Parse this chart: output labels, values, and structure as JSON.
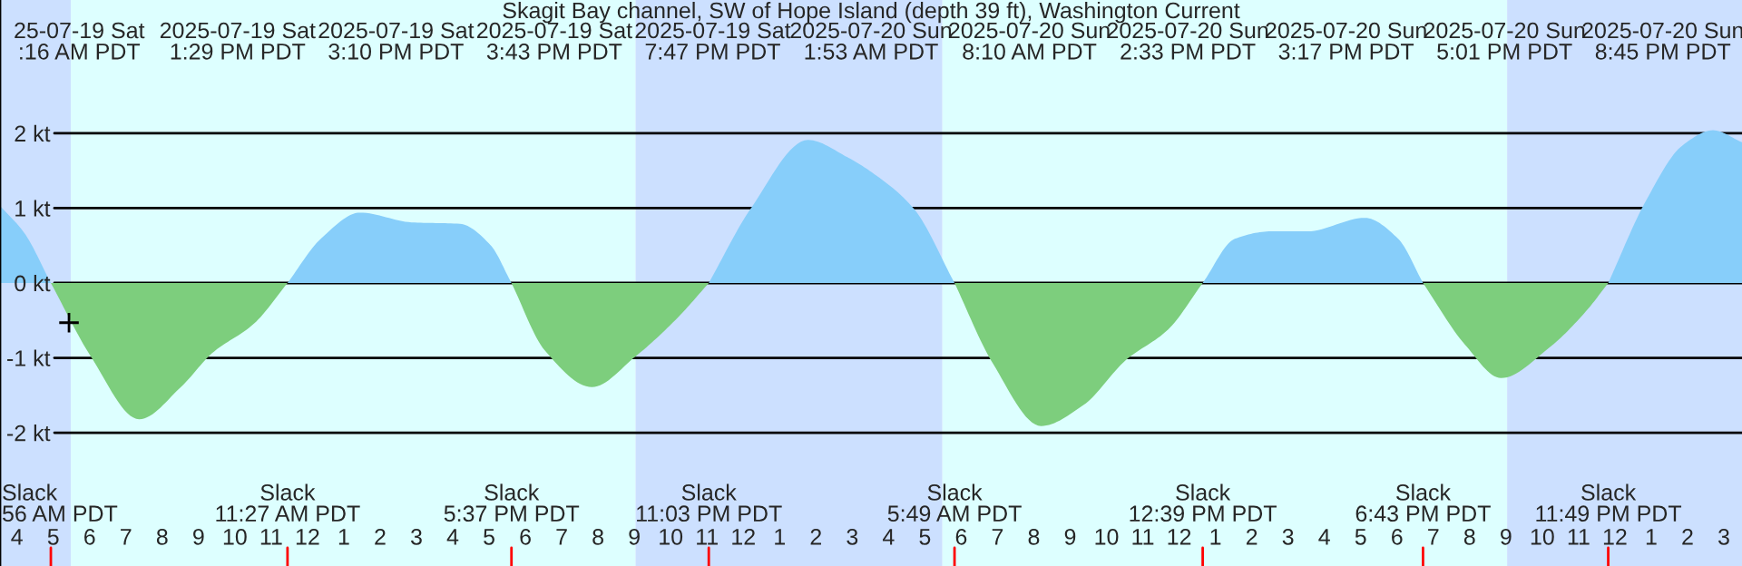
{
  "chart_data": {
    "type": "area",
    "title": "Skagit Bay channel, SW of Hope Island (depth 39 ft), Washington Current",
    "x": [
      "2025-07-19T03:32",
      "2025-07-19T04:12",
      "2025-07-19T04:56",
      "2025-07-19T06:02",
      "2025-07-19T07:22",
      "2025-07-19T08:32",
      "2025-07-19T09:22",
      "2025-07-19T10:32",
      "2025-07-19T11:27",
      "2025-07-19T12:22",
      "2025-07-19T13:27",
      "2025-07-19T14:52",
      "2025-07-19T16:12",
      "2025-07-19T17:02",
      "2025-07-19T17:37",
      "2025-07-19T18:32",
      "2025-07-19T19:50",
      "2025-07-19T21:02",
      "2025-07-19T22:12",
      "2025-07-19T23:03",
      "2025-07-20T00:12",
      "2025-07-20T01:47",
      "2025-07-20T02:52",
      "2025-07-20T03:32",
      "2025-07-20T04:42",
      "2025-07-20T05:49",
      "2025-07-20T06:52",
      "2025-07-20T08:12",
      "2025-07-20T09:22",
      "2025-07-20T10:32",
      "2025-07-20T11:42",
      "2025-07-20T12:39",
      "2025-07-20T13:32",
      "2025-07-20T14:32",
      "2025-07-20T15:32",
      "2025-07-20T17:07",
      "2025-07-20T18:02",
      "2025-07-20T18:43",
      "2025-07-20T19:52",
      "2025-07-20T20:52",
      "2025-07-20T22:12",
      "2025-07-20T23:12",
      "2025-07-20T23:49",
      "2025-07-21T00:52",
      "2025-07-21T01:52",
      "2025-07-21T02:42",
      "2025-07-21T03:30"
    ],
    "series": [
      {
        "color": "#87cefa",
        "values": [
          1.03,
          0.67,
          0,
          null,
          null,
          null,
          null,
          null,
          0,
          0.59,
          0.94,
          0.81,
          0.79,
          0.51,
          0,
          null,
          null,
          null,
          null,
          0,
          0.99,
          1.91,
          1.68,
          1.48,
          0.99,
          0,
          null,
          null,
          null,
          null,
          null,
          0,
          0.59,
          0.69,
          0.69,
          0.87,
          0.59,
          0,
          null,
          null,
          null,
          null,
          0,
          1.11,
          1.84,
          2.04,
          1.88
        ]
      },
      {
        "color": "#7dce7d",
        "values": [
          null,
          null,
          0,
          -0.98,
          -1.82,
          -1.38,
          -0.94,
          -0.54,
          0,
          null,
          null,
          null,
          null,
          null,
          0,
          -0.9,
          -1.39,
          -0.98,
          -0.46,
          0,
          null,
          null,
          null,
          null,
          null,
          0,
          -1.07,
          -1.91,
          -1.63,
          -1.03,
          -0.62,
          0,
          null,
          null,
          null,
          null,
          null,
          0,
          -0.82,
          -1.27,
          -0.86,
          -0.38,
          0,
          null,
          null,
          null,
          null
        ]
      },
      {
        "type": "scatter",
        "x": [
          "2025-07-19T05:26"
        ],
        "values": [
          -0.53
        ],
        "color": "#000000",
        "marker": "cross"
      }
    ],
    "xlim": [
      "2025-07-19T03:32",
      "2025-07-21T03:30"
    ],
    "ylim": [
      -3.78,
      3.78
    ],
    "xticks": [
      {
        "value": "2025-07-19T04:00",
        "label": "4"
      },
      {
        "value": "2025-07-19T05:00",
        "label": "5"
      },
      {
        "value": "2025-07-19T06:00",
        "label": "6"
      },
      {
        "value": "2025-07-19T07:00",
        "label": "7"
      },
      {
        "value": "2025-07-19T08:00",
        "label": "8"
      },
      {
        "value": "2025-07-19T09:00",
        "label": "9"
      },
      {
        "value": "2025-07-19T10:00",
        "label": "10"
      },
      {
        "value": "2025-07-19T11:00",
        "label": "11"
      },
      {
        "value": "2025-07-19T12:00",
        "label": "12"
      },
      {
        "value": "2025-07-19T13:00",
        "label": "1"
      },
      {
        "value": "2025-07-19T14:00",
        "label": "2"
      },
      {
        "value": "2025-07-19T15:00",
        "label": "3"
      },
      {
        "value": "2025-07-19T16:00",
        "label": "4"
      },
      {
        "value": "2025-07-19T17:00",
        "label": "5"
      },
      {
        "value": "2025-07-19T18:00",
        "label": "6"
      },
      {
        "value": "2025-07-19T19:00",
        "label": "7"
      },
      {
        "value": "2025-07-19T20:00",
        "label": "8"
      },
      {
        "value": "2025-07-19T21:00",
        "label": "9"
      },
      {
        "value": "2025-07-19T22:00",
        "label": "10"
      },
      {
        "value": "2025-07-19T23:00",
        "label": "11"
      },
      {
        "value": "2025-07-20T00:00",
        "label": "12"
      },
      {
        "value": "2025-07-20T01:00",
        "label": "1"
      },
      {
        "value": "2025-07-20T02:00",
        "label": "2"
      },
      {
        "value": "2025-07-20T03:00",
        "label": "3"
      },
      {
        "value": "2025-07-20T04:00",
        "label": "4"
      },
      {
        "value": "2025-07-20T05:00",
        "label": "5"
      },
      {
        "value": "2025-07-20T06:00",
        "label": "6"
      },
      {
        "value": "2025-07-20T07:00",
        "label": "7"
      },
      {
        "value": "2025-07-20T08:00",
        "label": "8"
      },
      {
        "value": "2025-07-20T09:00",
        "label": "9"
      },
      {
        "value": "2025-07-20T10:00",
        "label": "10"
      },
      {
        "value": "2025-07-20T11:00",
        "label": "11"
      },
      {
        "value": "2025-07-20T12:00",
        "label": "12"
      },
      {
        "value": "2025-07-20T13:00",
        "label": "1"
      },
      {
        "value": "2025-07-20T14:00",
        "label": "2"
      },
      {
        "value": "2025-07-20T15:00",
        "label": "3"
      },
      {
        "value": "2025-07-20T16:00",
        "label": "4"
      },
      {
        "value": "2025-07-20T17:00",
        "label": "5"
      },
      {
        "value": "2025-07-20T18:00",
        "label": "6"
      },
      {
        "value": "2025-07-20T19:00",
        "label": "7"
      },
      {
        "value": "2025-07-20T20:00",
        "label": "8"
      },
      {
        "value": "2025-07-20T21:00",
        "label": "9"
      },
      {
        "value": "2025-07-20T22:00",
        "label": "10"
      },
      {
        "value": "2025-07-20T23:00",
        "label": "11"
      },
      {
        "value": "2025-07-21T00:00",
        "label": "12"
      },
      {
        "value": "2025-07-21T01:00",
        "label": "1"
      },
      {
        "value": "2025-07-21T02:00",
        "label": "2"
      },
      {
        "value": "2025-07-21T03:00",
        "label": "3"
      }
    ],
    "yticks": [
      {
        "value": -2,
        "label": "-2 kt"
      },
      {
        "value": -1,
        "label": "-1 kt"
      },
      {
        "value": 0,
        "label": "0 kt"
      },
      {
        "value": 1,
        "label": "1 kt"
      },
      {
        "value": 2,
        "label": "2 kt"
      }
    ],
    "grid": "y",
    "bands": [
      {
        "axis": "x",
        "from": "2025-07-19T03:32",
        "to": "2025-07-19T05:29",
        "color": "#cce0ff"
      },
      {
        "axis": "x",
        "from": "2025-07-19T05:29",
        "to": "2025-07-19T21:02",
        "color": "#ddffff"
      },
      {
        "axis": "x",
        "from": "2025-07-19T21:02",
        "to": "2025-07-20T05:29",
        "color": "#cce0ff"
      },
      {
        "axis": "x",
        "from": "2025-07-20T05:29",
        "to": "2025-07-20T21:02",
        "color": "#ddffff"
      },
      {
        "axis": "x",
        "from": "2025-07-20T21:02",
        "to": "2025-07-21T03:30",
        "color": "#cce0ff"
      }
    ],
    "annotations": [
      "25-07-19 Sat\n:16 AM PDT",
      "2025-07-19 Sat\n1:29 PM PDT",
      "2025-07-19 Sat\n3:10 PM PDT",
      "2025-07-19 Sat\n3:43 PM PDT",
      "2025-07-19 Sat\n7:47 PM PDT",
      "2025-07-20 Sun\n1:53 AM PDT",
      "2025-07-20 Sun\n8:10 AM PDT",
      "2025-07-20 Sun\n2:33 PM PDT",
      "2025-07-20 Sun\n3:17 PM PDT",
      "2025-07-20 Sun\n5:01 PM PDT",
      "2025-07-20 Sun\n8:45 PM PDT",
      "Slack\n56 AM PDT",
      "Slack\n11:27 AM PDT",
      "Slack\n5:37 PM PDT",
      "Slack\n11:03 PM PDT",
      "Slack\n5:49 AM PDT",
      "Slack\n12:39 PM PDT",
      "Slack\n6:43 PM PDT",
      "Slack\n11:49 PM PDT"
    ]
  }
}
